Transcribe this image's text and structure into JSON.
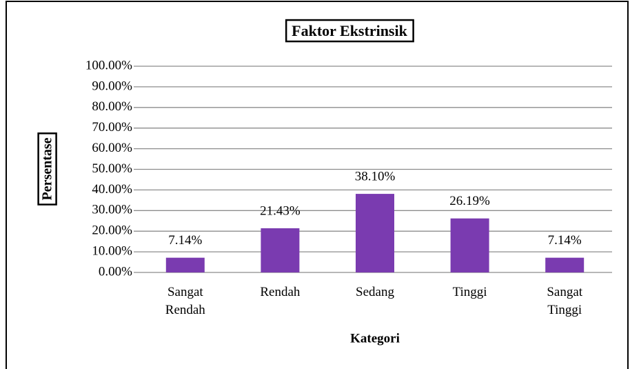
{
  "chart_data": {
    "type": "bar",
    "title": "Faktor Ekstrinsik",
    "xlabel": "Kategori",
    "ylabel": "Persentase",
    "categories": [
      "Sangat Rendah",
      "Rendah",
      "Sedang",
      "Tinggi",
      "Sangat Tinggi"
    ],
    "values": [
      7.14,
      21.43,
      38.1,
      26.19,
      7.14
    ],
    "value_labels": [
      "7.14%",
      "21.43%",
      "38.10%",
      "26.19%",
      "7.14%"
    ],
    "color": "#7a3bb0",
    "ylim": [
      0,
      100
    ],
    "yticks": [
      {
        "value": 0,
        "label": "0.00%"
      },
      {
        "value": 10,
        "label": "10.00%"
      },
      {
        "value": 20,
        "label": "20.00%"
      },
      {
        "value": 30,
        "label": "30.00%"
      },
      {
        "value": 40,
        "label": "40.00%"
      },
      {
        "value": 50,
        "label": "50.00%"
      },
      {
        "value": 60,
        "label": "60.00%"
      },
      {
        "value": 70,
        "label": "70.00%"
      },
      {
        "value": 80,
        "label": "80.00%"
      },
      {
        "value": 90,
        "label": "90.00%"
      },
      {
        "value": 100,
        "label": "100.00%"
      }
    ],
    "grid": true
  }
}
